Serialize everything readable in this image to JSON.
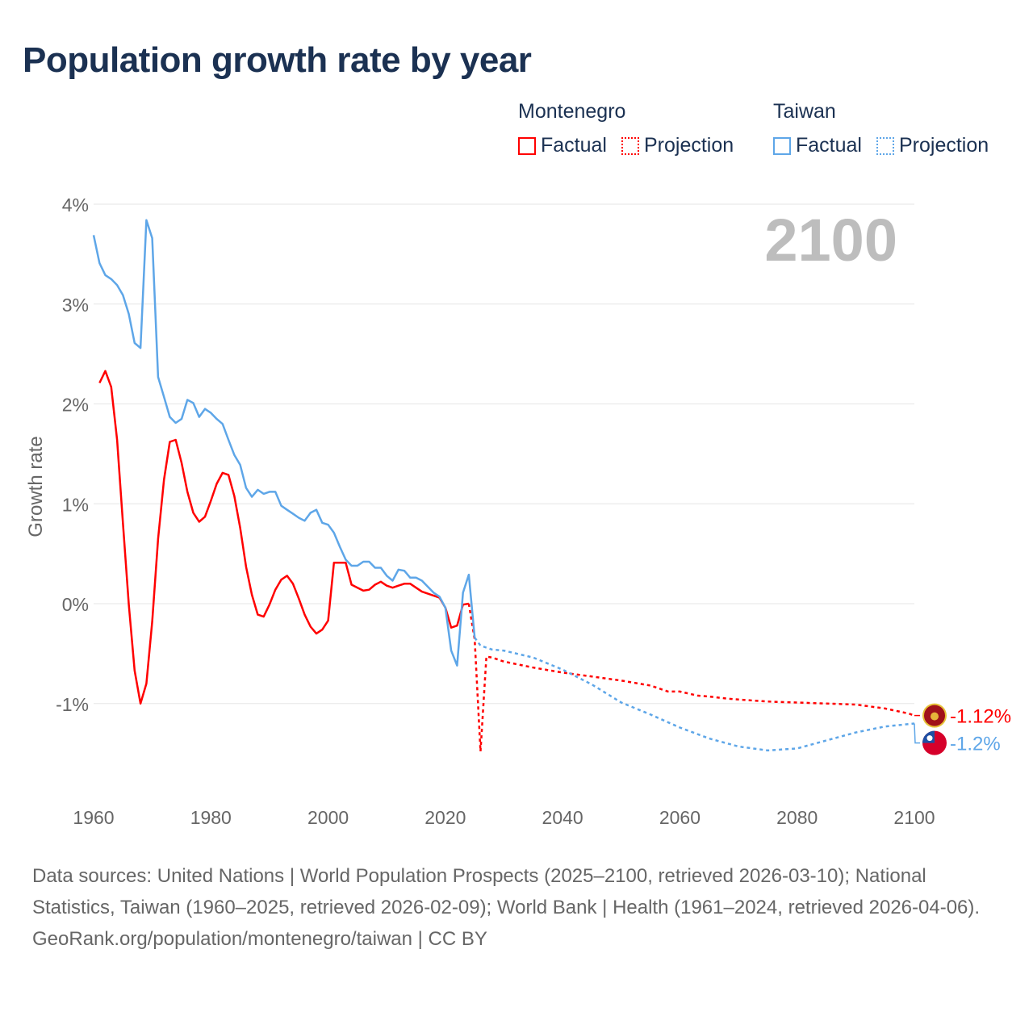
{
  "title": "Population growth rate by year",
  "legend": {
    "groups": [
      {
        "name": "Montenegro",
        "factual": "Factual",
        "projection": "Projection",
        "color": "#ff0000"
      },
      {
        "name": "Taiwan",
        "factual": "Factual",
        "projection": "Projection",
        "color": "#5ea6e8"
      }
    ]
  },
  "footer": {
    "sources": "Data sources: United Nations | World Population Prospects (2025–2100, retrieved 2026-03-10); National Statistics, Taiwan (1960–2025, retrieved 2026-02-09); World Bank | Health (1961–2024, retrieved 2026-04-06).",
    "credit": "GeoRank.org/population/montenegro/taiwan | CC BY"
  },
  "chart_data": {
    "type": "line",
    "title": "Population growth rate by year",
    "year_label": "2100",
    "xlabel": "",
    "ylabel": "Growth rate",
    "xlim": [
      1960,
      2100
    ],
    "ylim": [
      -1.95,
      4
    ],
    "x_ticks": [
      1960,
      1980,
      2000,
      2020,
      2040,
      2060,
      2080,
      2100
    ],
    "y_ticks": [
      -1,
      0,
      1,
      2,
      3,
      4
    ],
    "y_tick_labels": [
      "-1%",
      "0%",
      "1%",
      "2%",
      "3%",
      "4%"
    ],
    "grid": true,
    "legend_position": "top-right",
    "series": [
      {
        "name": "Montenegro",
        "part": "Factual",
        "color": "#ff0000",
        "style": "solid",
        "x_start": 1961,
        "values": [
          2.21,
          2.33,
          2.17,
          1.64,
          0.81,
          -0.01,
          -0.67,
          -1.0,
          -0.8,
          -0.18,
          0.65,
          1.24,
          1.62,
          1.64,
          1.41,
          1.12,
          0.91,
          0.82,
          0.87,
          1.03,
          1.2,
          1.31,
          1.29,
          1.08,
          0.76,
          0.37,
          0.09,
          -0.11,
          -0.13,
          -0.01,
          0.14,
          0.24,
          0.28,
          0.2,
          0.05,
          -0.11,
          -0.23,
          -0.3,
          -0.26,
          -0.17,
          0.41,
          0.41,
          0.41,
          0.19,
          0.16,
          0.13,
          0.14,
          0.19,
          0.22,
          0.18,
          0.16,
          0.18,
          0.2,
          0.2,
          0.16,
          0.12,
          0.1,
          0.08,
          0.06,
          -0.04,
          -0.24,
          -0.22,
          -0.01,
          0.0
        ]
      },
      {
        "name": "Montenegro",
        "part": "Projection",
        "color": "#ff0000",
        "style": "dotted",
        "x": [
          2024,
          2025,
          2026,
          2027,
          2028,
          2030,
          2035,
          2040,
          2045,
          2050,
          2055,
          2058,
          2060,
          2063,
          2065,
          2068,
          2070,
          2075,
          2080,
          2085,
          2090,
          2095,
          2099,
          2100
        ],
        "values": [
          0.0,
          -0.36,
          -1.48,
          -0.53,
          -0.54,
          -0.58,
          -0.64,
          -0.69,
          -0.73,
          -0.77,
          -0.82,
          -0.88,
          -0.88,
          -0.92,
          -0.93,
          -0.95,
          -0.96,
          -0.98,
          -0.99,
          -1.0,
          -1.01,
          -1.05,
          -1.1,
          -1.12
        ]
      },
      {
        "name": "Taiwan",
        "part": "Factual",
        "color": "#5ea6e8",
        "style": "solid",
        "x_start": 1960,
        "values": [
          3.69,
          3.41,
          3.29,
          3.25,
          3.19,
          3.09,
          2.9,
          2.61,
          2.56,
          3.84,
          3.66,
          2.27,
          2.07,
          1.87,
          1.81,
          1.85,
          2.04,
          2.01,
          1.87,
          1.95,
          1.91,
          1.85,
          1.8,
          1.64,
          1.49,
          1.39,
          1.16,
          1.07,
          1.14,
          1.1,
          1.12,
          1.12,
          0.98,
          0.94,
          0.9,
          0.86,
          0.83,
          0.91,
          0.94,
          0.81,
          0.79,
          0.71,
          0.57,
          0.44,
          0.38,
          0.38,
          0.42,
          0.42,
          0.36,
          0.36,
          0.28,
          0.23,
          0.34,
          0.33,
          0.26,
          0.26,
          0.23,
          0.17,
          0.11,
          0.07,
          -0.04,
          -0.47,
          -0.62,
          0.11,
          0.29,
          -0.34
        ]
      },
      {
        "name": "Taiwan",
        "part": "Projection",
        "color": "#5ea6e8",
        "style": "dotted",
        "x": [
          2025,
          2026,
          2027,
          2028,
          2030,
          2035,
          2040,
          2045,
          2050,
          2055,
          2060,
          2065,
          2070,
          2075,
          2080,
          2085,
          2090,
          2095,
          2100
        ],
        "values": [
          -0.34,
          -0.42,
          -0.44,
          -0.46,
          -0.47,
          -0.54,
          -0.66,
          -0.81,
          -0.99,
          -1.11,
          -1.24,
          -1.35,
          -1.43,
          -1.47,
          -1.45,
          -1.37,
          -1.29,
          -1.23,
          -1.2
        ]
      }
    ],
    "end_labels": [
      {
        "name": "Montenegro",
        "text": "-1.12%",
        "value": -1.12,
        "color": "#ff0000",
        "flag": "montenegro-flag"
      },
      {
        "name": "Taiwan",
        "text": "-1.2%",
        "value": -1.2,
        "color": "#5ea6e8",
        "flag": "taiwan-flag"
      }
    ]
  }
}
